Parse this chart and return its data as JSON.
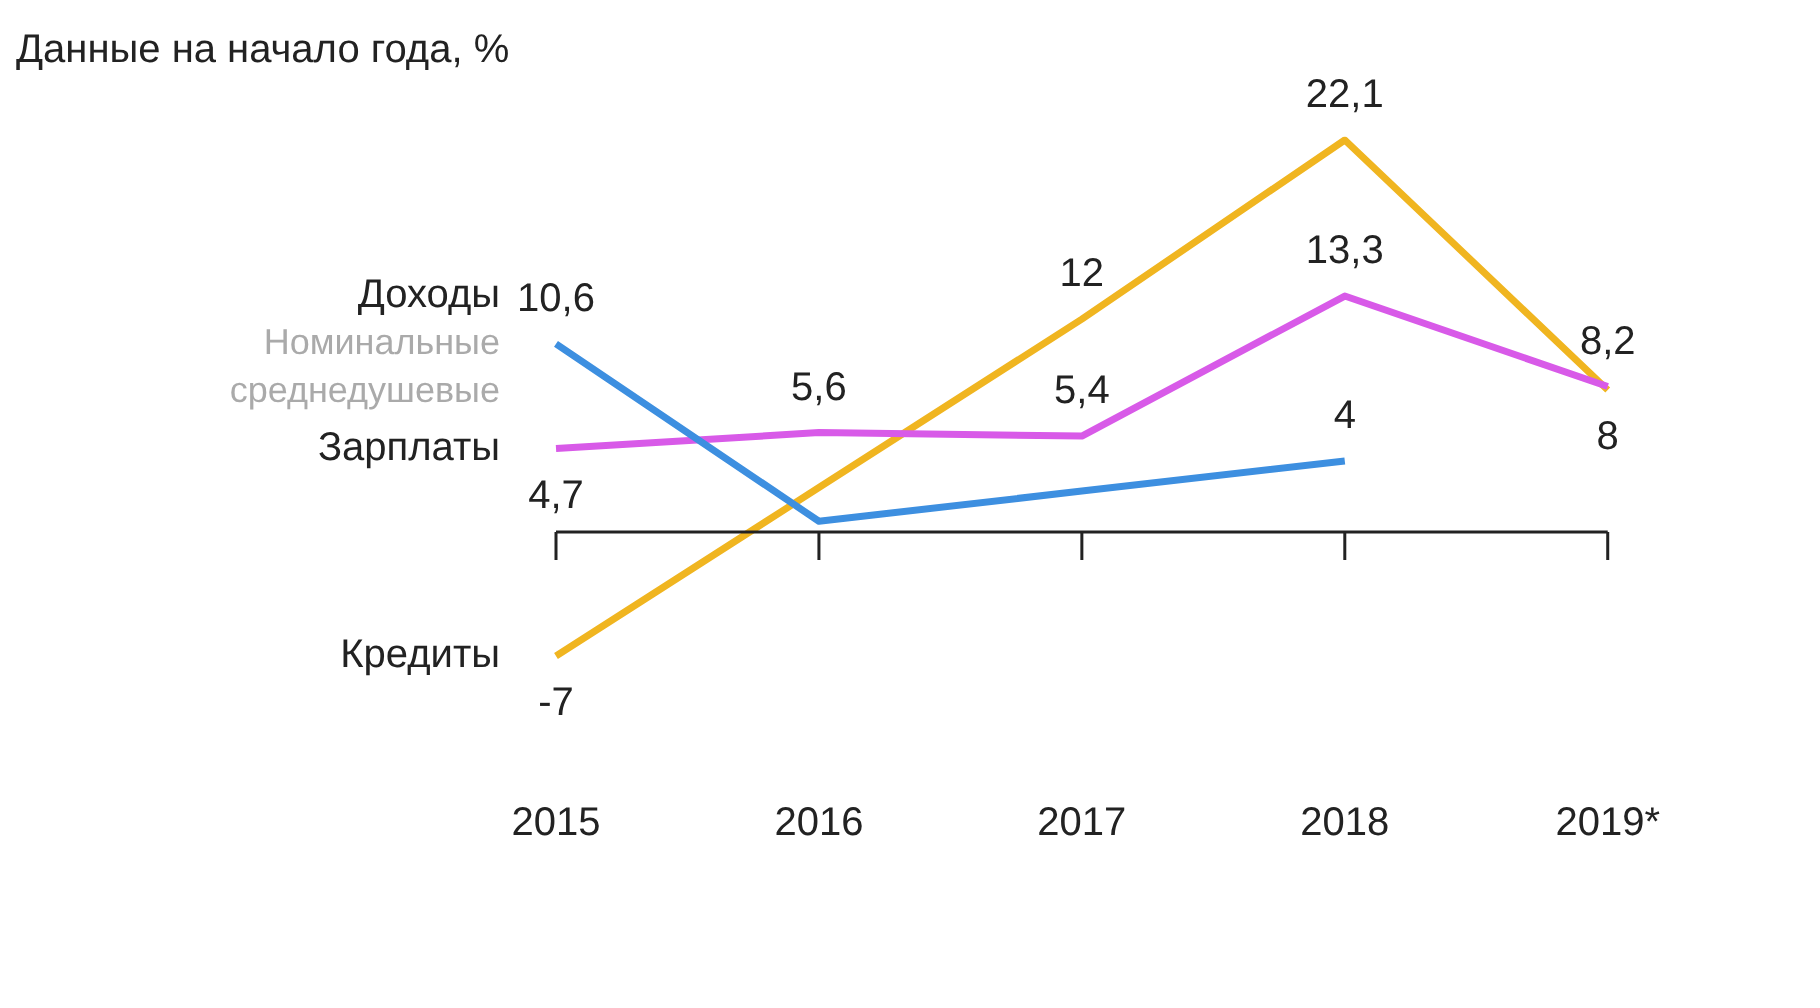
{
  "chart_data": {
    "type": "line",
    "title": "Данные на начало года, %",
    "categories": [
      "2015",
      "2016",
      "2017",
      "2018",
      "2019*"
    ],
    "series": [
      {
        "name": "Доходы",
        "color": "#3d8fe0",
        "values": [
          10.6,
          0.6,
          2.3,
          4,
          null
        ],
        "value_labels": [
          "10,6",
          null,
          null,
          "4",
          null
        ]
      },
      {
        "name": "Зарплаты",
        "color": "#d85ae8",
        "values": [
          4.7,
          5.6,
          5.4,
          13.3,
          8.2
        ],
        "value_labels": [
          "4,7",
          "5,6",
          "5,4",
          "13,3",
          "8,2"
        ]
      },
      {
        "name": "Кредиты",
        "color": "#f0b520",
        "values": [
          -7,
          2.5,
          12,
          22.1,
          8
        ],
        "value_labels": [
          "-7",
          null,
          "12",
          "22,1",
          "8"
        ]
      }
    ],
    "annotations": [
      "Номинальные среднедушевые"
    ],
    "ref_lines": [
      {
        "axis": "y",
        "value": 0,
        "color": "#222222"
      }
    ],
    "grid": false,
    "legend": false,
    "marker": "none",
    "line_style": "solid"
  }
}
